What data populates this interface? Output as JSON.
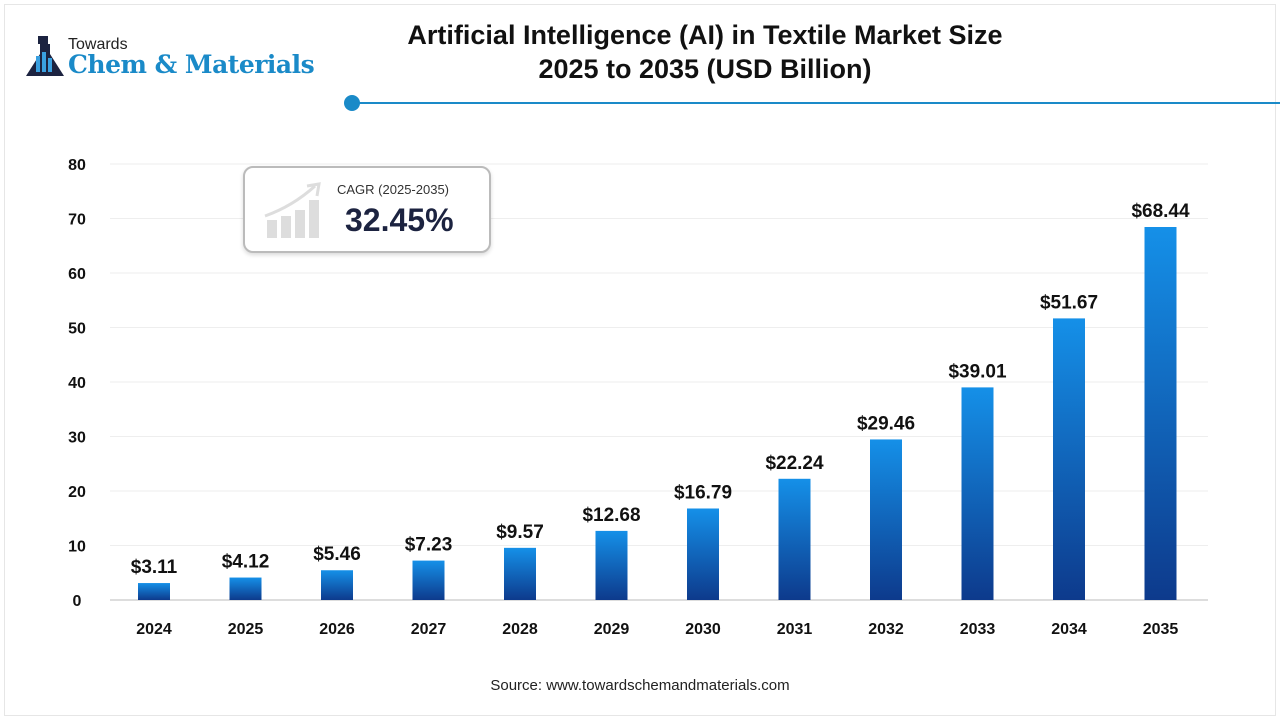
{
  "logo": {
    "line1": "Towards",
    "line2": "Chem & Materials"
  },
  "title_line1": "Artificial Intelligence (AI) in Textile Market Size",
  "title_line2": "2025 to 2035 (USD Billion)",
  "cagr": {
    "label": "CAGR (2025-2035)",
    "value": "32.45%"
  },
  "source": "Source: www.towardschemandmaterials.com",
  "colors": {
    "accent": "#1a8ac8",
    "bar_top": "#1590e8",
    "bar_bottom": "#0d3a8c"
  },
  "chart_data": {
    "type": "bar",
    "categories": [
      "2024",
      "2025",
      "2026",
      "2027",
      "2028",
      "2029",
      "2030",
      "2031",
      "2032",
      "2033",
      "2034",
      "2035"
    ],
    "values": [
      3.11,
      4.12,
      5.46,
      7.23,
      9.57,
      12.68,
      16.79,
      22.24,
      29.46,
      39.01,
      51.67,
      68.44
    ],
    "data_labels": [
      "$3.11",
      "$4.12",
      "$5.46",
      "$7.23",
      "$9.57",
      "$12.68",
      "$16.79",
      "$22.24",
      "$29.46",
      "$39.01",
      "$51.67",
      "$68.44"
    ],
    "yticks": [
      0,
      10,
      20,
      30,
      40,
      50,
      60,
      70,
      80
    ],
    "ylim": [
      0,
      80
    ],
    "grid": true
  }
}
